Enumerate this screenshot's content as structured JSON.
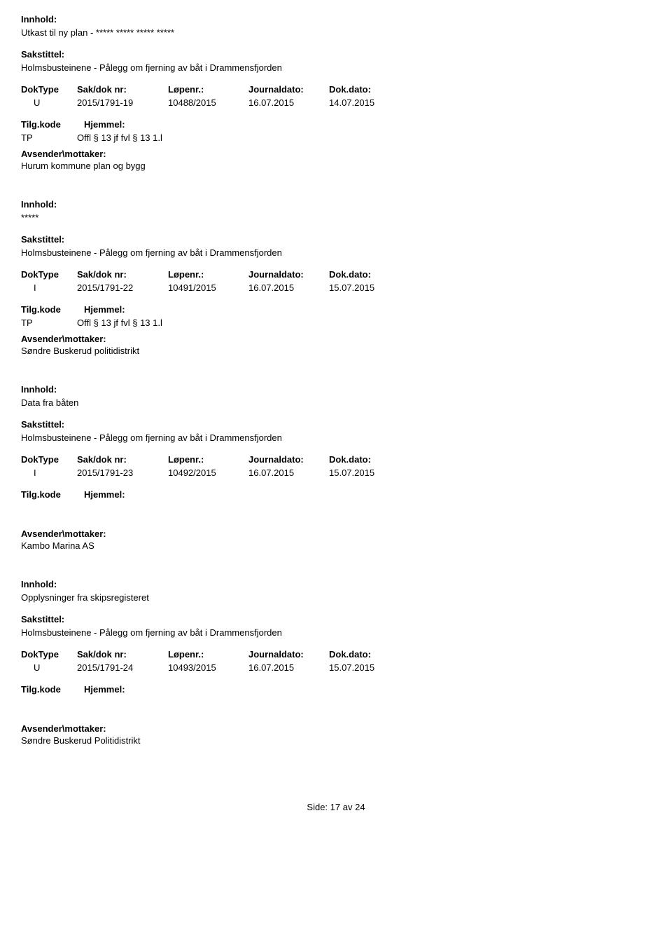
{
  "labels": {
    "innhold": "Innhold:",
    "sakstittel": "Sakstittel:",
    "doktype": "DokType",
    "sakdoknr": "Sak/dok nr:",
    "lopenr": "Løpenr.:",
    "journaldato": "Journaldato:",
    "dokdato": "Dok.dato:",
    "tilgkode": "Tilg.kode",
    "hjemmel": "Hjemmel:",
    "avsender": "Avsender\\mottaker:"
  },
  "records": [
    {
      "innhold": "Utkast til ny plan - ***** ***** ***** *****",
      "sakstittel": "Holmsbusteinene - Pålegg om fjerning av båt i Drammensfjorden",
      "doktype": "U",
      "sakdoknr": "2015/1791-19",
      "lopenr": "10488/2015",
      "journaldato": "16.07.2015",
      "dokdato": "14.07.2015",
      "tilgkode": "TP",
      "hjemmel": "Offl § 13 jf fvl § 13 1.l",
      "avsender": "Hurum kommune plan og bygg"
    },
    {
      "innhold": "*****",
      "sakstittel": "Holmsbusteinene - Pålegg om fjerning av båt i Drammensfjorden",
      "doktype": "I",
      "sakdoknr": "2015/1791-22",
      "lopenr": "10491/2015",
      "journaldato": "16.07.2015",
      "dokdato": "15.07.2015",
      "tilgkode": "TP",
      "hjemmel": "Offl § 13 jf fvl § 13 1.l",
      "avsender": "Søndre Buskerud politidistrikt"
    },
    {
      "innhold": "Data fra båten",
      "sakstittel": "Holmsbusteinene - Pålegg om fjerning av båt i Drammensfjorden",
      "doktype": "I",
      "sakdoknr": "2015/1791-23",
      "lopenr": "10492/2015",
      "journaldato": "16.07.2015",
      "dokdato": "15.07.2015",
      "tilgkode": "",
      "hjemmel": "",
      "avsender": "Kambo Marina AS",
      "extraGap": true
    },
    {
      "innhold": "Opplysninger fra skipsregisteret",
      "sakstittel": "Holmsbusteinene - Pålegg om fjerning av båt i Drammensfjorden",
      "doktype": "U",
      "sakdoknr": "2015/1791-24",
      "lopenr": "10493/2015",
      "journaldato": "16.07.2015",
      "dokdato": "15.07.2015",
      "tilgkode": "",
      "hjemmel": "",
      "avsender": "Søndre Buskerud Politidistrikt",
      "extraGap": true
    }
  ],
  "footer": {
    "prefix": "Side:",
    "page": "17",
    "of": "av",
    "total": "24"
  }
}
